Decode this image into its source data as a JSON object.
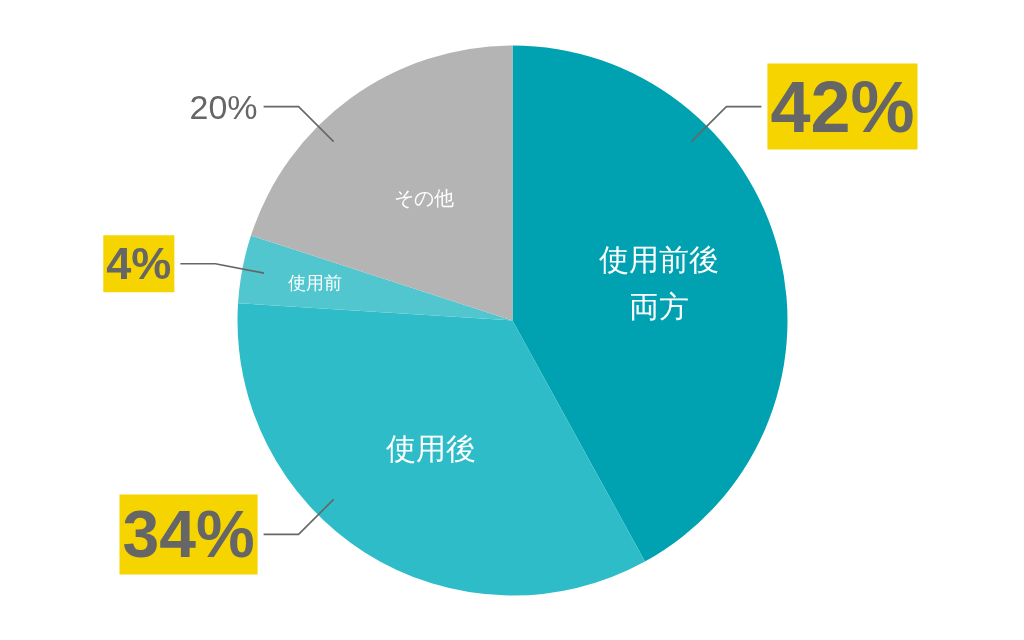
{
  "chart_data": {
    "type": "pie",
    "categories": [
      "使用前後両方",
      "使用後",
      "使用前",
      "その他"
    ],
    "values": [
      42,
      34,
      4,
      20
    ],
    "colors": [
      "#00a2b1",
      "#2ebdc8",
      "#52c6cf",
      "#b4b4b4"
    ],
    "value_labels": [
      "42%",
      "34%",
      "4%",
      "20%"
    ]
  }
}
